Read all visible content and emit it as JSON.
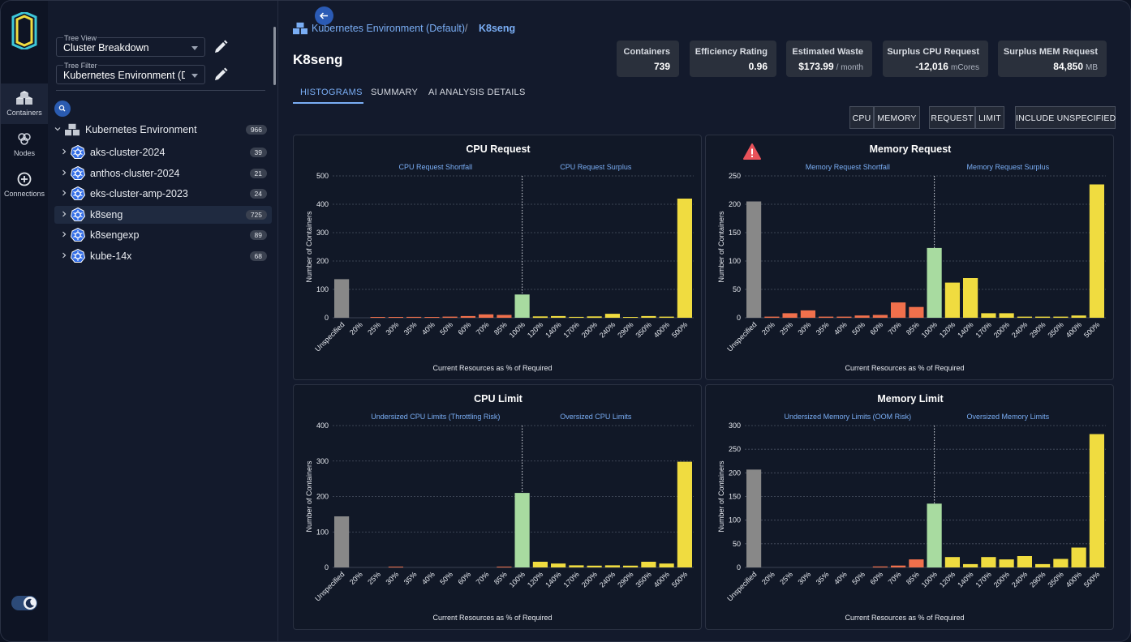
{
  "sidebar": {
    "rail": [
      {
        "label": "Containers",
        "icon": "cubes-icon",
        "active": true
      },
      {
        "label": "Nodes",
        "icon": "nodes-icon",
        "active": false
      },
      {
        "label": "Connections",
        "icon": "plus-circle-icon",
        "active": false
      }
    ]
  },
  "tree": {
    "view_label": "Tree View",
    "view_value": "Cluster Breakdown",
    "filter_label": "Tree Filter",
    "filter_value": "Kubernetes Environment (D...",
    "root": {
      "label": "Kubernetes Environment",
      "count": "966"
    },
    "items": [
      {
        "label": "aks-cluster-2024",
        "count": "39"
      },
      {
        "label": "anthos-cluster-2024",
        "count": "21"
      },
      {
        "label": "eks-cluster-amp-2023",
        "count": "24"
      },
      {
        "label": "k8seng",
        "count": "725"
      },
      {
        "label": "k8sengexp",
        "count": "89"
      },
      {
        "label": "kube-14x",
        "count": "68"
      }
    ]
  },
  "breadcrumb": {
    "root": "Kubernetes Environment (Default)",
    "separator": "/",
    "leaf": "K8seng"
  },
  "page_title": "K8seng",
  "stats": [
    {
      "label": "Containers",
      "value": "739",
      "unit": ""
    },
    {
      "label": "Efficiency Rating",
      "value": "0.96",
      "unit": ""
    },
    {
      "label": "Estimated Waste",
      "value": "$173.99",
      "unit": "/ month"
    },
    {
      "label": "Surplus CPU Request",
      "value": "-12,016",
      "unit": "mCores"
    },
    {
      "label": "Surplus MEM Request",
      "value": "84,850",
      "unit": "MB"
    }
  ],
  "tabs": [
    {
      "label": "HISTOGRAMS",
      "active": true
    },
    {
      "label": "SUMMARY",
      "active": false
    },
    {
      "label": "AI ANALYSIS DETAILS",
      "active": false
    }
  ],
  "toolbar": {
    "cpu": "CPU",
    "memory": "MEMORY",
    "request": "REQUEST",
    "limit": "LIMIT",
    "include_unspecified": "INCLUDE UNSPECIFIED"
  },
  "colors": {
    "unspecified": "#888888",
    "under": "#f0704c",
    "target": "#a8dba0",
    "over": "#f0dc40",
    "accent": "#7aaef5"
  },
  "chart_data": [
    {
      "type": "bar",
      "title": "CPU Request",
      "left_annotation": "CPU Request Shortfall",
      "right_annotation": "CPU Request Surplus",
      "xlabel": "Current Resources as % of Required",
      "ylabel": "Number of Containers",
      "ylim": [
        0,
        500
      ],
      "yticks": [
        0,
        100,
        200,
        300,
        400,
        500
      ],
      "categories": [
        "Unspecified",
        "20%",
        "25%",
        "30%",
        "35%",
        "40%",
        "50%",
        "60%",
        "70%",
        "85%",
        "100%",
        "120%",
        "140%",
        "170%",
        "200%",
        "240%",
        "290%",
        "350%",
        "400%",
        "500%"
      ],
      "values": [
        136,
        0,
        2,
        2,
        3,
        2,
        4,
        6,
        12,
        10,
        82,
        5,
        6,
        3,
        5,
        14,
        2,
        6,
        4,
        420
      ],
      "alert": false
    },
    {
      "type": "bar",
      "title": "Memory Request",
      "left_annotation": "Memory Request Shortfall",
      "right_annotation": "Memory Request Surplus",
      "xlabel": "Current Resources as % of Required",
      "ylabel": "Number of Containers",
      "ylim": [
        0,
        250
      ],
      "yticks": [
        0,
        50,
        100,
        150,
        200,
        250
      ],
      "categories": [
        "Unspecified",
        "20%",
        "25%",
        "30%",
        "35%",
        "40%",
        "50%",
        "60%",
        "70%",
        "85%",
        "100%",
        "120%",
        "140%",
        "170%",
        "200%",
        "240%",
        "290%",
        "350%",
        "400%",
        "500%"
      ],
      "values": [
        205,
        2,
        8,
        13,
        2,
        2,
        4,
        5,
        27,
        19,
        123,
        62,
        70,
        8,
        8,
        2,
        2,
        2,
        4,
        235
      ],
      "alert": true
    },
    {
      "type": "bar",
      "title": "CPU Limit",
      "left_annotation": "Undersized CPU Limits (Throttling Risk)",
      "right_annotation": "Oversized CPU Limits",
      "xlabel": "Current Resources as % of Required",
      "ylabel": "Number of Containers",
      "ylim": [
        0,
        400
      ],
      "yticks": [
        0,
        100,
        200,
        300,
        400
      ],
      "categories": [
        "Unspecified",
        "20%",
        "25%",
        "30%",
        "35%",
        "40%",
        "50%",
        "60%",
        "70%",
        "85%",
        "100%",
        "120%",
        "140%",
        "170%",
        "200%",
        "240%",
        "290%",
        "350%",
        "400%",
        "500%"
      ],
      "values": [
        144,
        0,
        0,
        2,
        0,
        0,
        0,
        0,
        0,
        2,
        210,
        16,
        11,
        6,
        5,
        6,
        5,
        16,
        11,
        298
      ],
      "alert": false
    },
    {
      "type": "bar",
      "title": "Memory Limit",
      "left_annotation": "Undersized Memory Limits (OOM Risk)",
      "right_annotation": "Oversized Memory Limits",
      "xlabel": "Current Resources as % of Required",
      "ylabel": "Number of Containers",
      "ylim": [
        0,
        300
      ],
      "yticks": [
        0,
        50,
        100,
        150,
        200,
        250,
        300
      ],
      "categories": [
        "Unspecified",
        "20%",
        "25%",
        "30%",
        "35%",
        "40%",
        "50%",
        "60%",
        "70%",
        "85%",
        "100%",
        "120%",
        "140%",
        "170%",
        "200%",
        "240%",
        "290%",
        "350%",
        "400%",
        "500%"
      ],
      "values": [
        207,
        0,
        0,
        0,
        0,
        0,
        0,
        2,
        4,
        17,
        135,
        22,
        7,
        22,
        17,
        24,
        7,
        18,
        42,
        282
      ],
      "alert": false
    }
  ]
}
